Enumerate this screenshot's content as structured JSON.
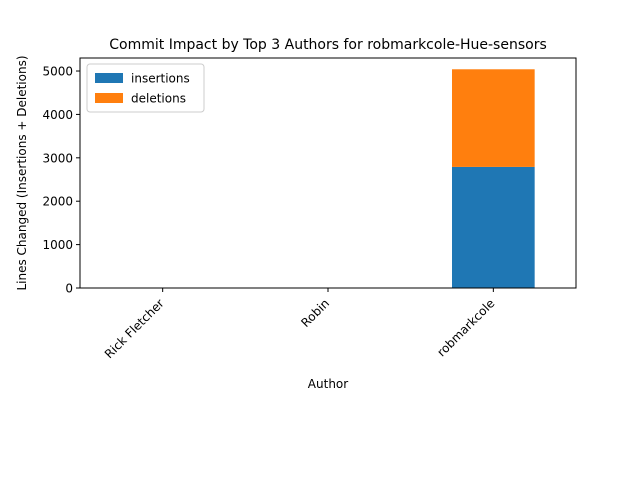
{
  "chart_data": {
    "type": "bar",
    "stacked": true,
    "title": "Commit Impact by Top 3 Authors for robmarkcole-Hue-sensors",
    "xlabel": "Author",
    "ylabel": "Lines Changed (Insertions + Deletions)",
    "categories": [
      "Rick Fletcher",
      "Robin",
      "robmarkcole"
    ],
    "series": [
      {
        "name": "insertions",
        "values": [
          2,
          1,
          2790
        ],
        "color": "#1f77b4"
      },
      {
        "name": "deletions",
        "values": [
          1,
          1,
          2250
        ],
        "color": "#ff7f0e"
      }
    ],
    "ylim": [
      0,
      5300
    ],
    "yticks": [
      0,
      1000,
      2000,
      3000,
      4000,
      5000
    ],
    "grid": false,
    "legend_position": "top-left",
    "xtick_rotation": 45
  }
}
